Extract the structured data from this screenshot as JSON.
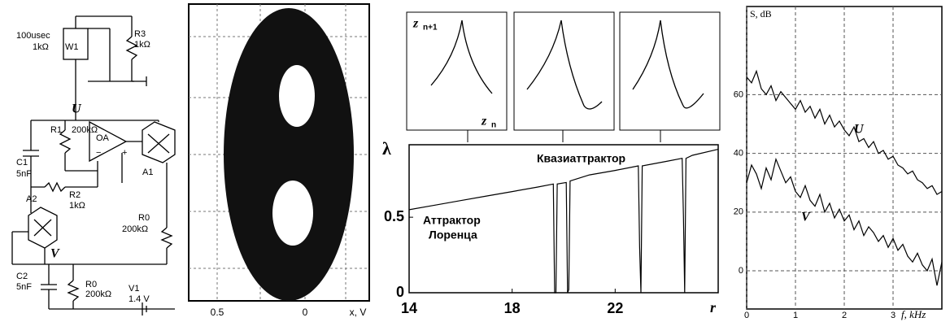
{
  "circuit": {
    "labels": [
      "100usec",
      "1kΩ",
      "W1",
      "R3",
      "1kΩ",
      "U",
      "R1",
      "200kΩ",
      "C1",
      "5nF",
      "OA",
      "A1",
      "A2",
      "R2",
      "1kΩ",
      "R0",
      "200kΩ",
      "V",
      "C2",
      "5nF",
      "R0",
      "200kΩ",
      "V1",
      "1.4 V",
      "−",
      "+"
    ]
  },
  "oscillogram": {
    "tick_labels": [
      "0.5",
      "0",
      "x, V"
    ]
  },
  "insets": {
    "y_label": "z",
    "y_sub": "n+1",
    "x_label": "z",
    "x_sub": "n"
  },
  "chart_data": [
    {
      "type": "line",
      "y_label": "λ",
      "x_label": "r",
      "annotations": [
        "Квазиаттрактор",
        "Аттрактор",
        "Лоренца"
      ],
      "x": [
        14,
        15,
        16,
        17,
        18,
        19,
        19.6,
        19.65,
        19.7,
        19.75,
        20.1,
        20.15,
        20.2,
        20.25,
        21,
        22,
        22.9,
        22.95,
        23.0,
        23.05,
        24,
        24.6,
        24.65,
        24.7,
        24.75,
        25,
        26
      ],
      "series": [
        {
          "color": "#000000",
          "values": [
            0.55,
            0.58,
            0.61,
            0.64,
            0.67,
            0.7,
            0.72,
            0,
            0,
            0.72,
            0.73,
            0,
            0.02,
            0.74,
            0.78,
            0.81,
            0.84,
            0.3,
            0,
            0.84,
            0.87,
            0.89,
            0.5,
            0,
            0.89,
            0.91,
            0.95
          ]
        }
      ],
      "xlim": [
        14,
        26
      ],
      "ylim": [
        0,
        0.98
      ],
      "xticks": [
        14,
        18,
        22
      ],
      "yticks": [
        0,
        0.5
      ]
    },
    {
      "type": "line",
      "y_label": "S, dB",
      "x_label": "f, kHz",
      "grid": true,
      "x": [
        0,
        0.1,
        0.2,
        0.3,
        0.4,
        0.5,
        0.6,
        0.7,
        0.8,
        0.9,
        1,
        1.1,
        1.2,
        1.3,
        1.4,
        1.5,
        1.6,
        1.7,
        1.8,
        1.9,
        2,
        2.1,
        2.2,
        2.3,
        2.4,
        2.5,
        2.6,
        2.7,
        2.8,
        2.9,
        3,
        3.1,
        3.2,
        3.3,
        3.4,
        3.5,
        3.6,
        3.7,
        3.8,
        3.9,
        4
      ],
      "series": [
        {
          "name": "U",
          "color": "#000000",
          "values": [
            66,
            64,
            68,
            62,
            60,
            63,
            58,
            61,
            59,
            57,
            55,
            58,
            54,
            56,
            52,
            55,
            50,
            53,
            49,
            51,
            48,
            46,
            49,
            44,
            45,
            42,
            44,
            40,
            41,
            38,
            39,
            36,
            35,
            33,
            34,
            31,
            30,
            28,
            29,
            26,
            27
          ]
        },
        {
          "name": "V",
          "color": "#000000",
          "values": [
            30,
            36,
            33,
            28,
            35,
            31,
            38,
            34,
            30,
            32,
            27,
            25,
            29,
            24,
            22,
            26,
            20,
            23,
            18,
            21,
            17,
            19,
            14,
            17,
            12,
            15,
            13,
            10,
            12,
            8,
            11,
            7,
            9,
            5,
            3,
            6,
            2,
            0,
            4,
            -5,
            3
          ]
        }
      ],
      "xlim": [
        0,
        4
      ],
      "ylim": [
        -13,
        90
      ],
      "xticks": [
        0,
        1,
        2,
        3
      ],
      "yticks": [
        0,
        20,
        40,
        60
      ]
    }
  ]
}
